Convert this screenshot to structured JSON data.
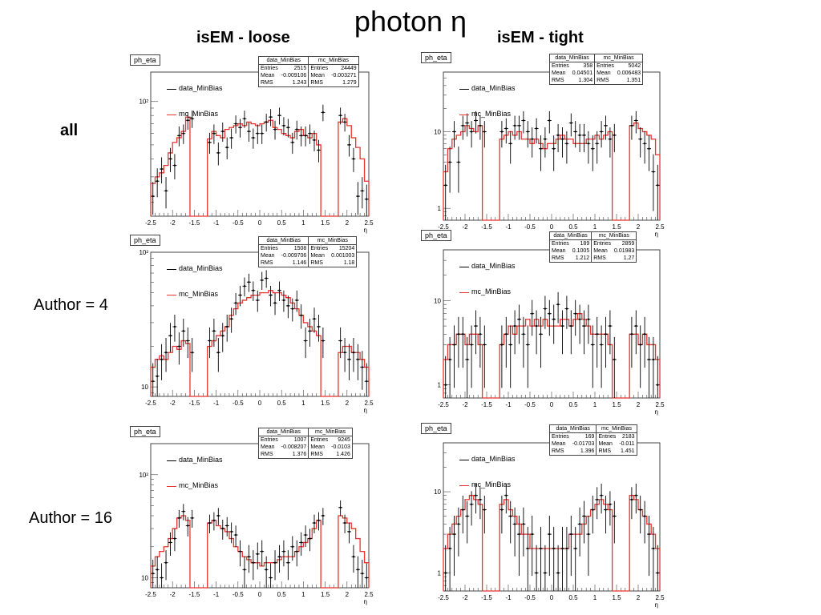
{
  "slide": {
    "title": "photon η",
    "col_loose": "isEM - loose",
    "col_tight": "isEM - tight",
    "row_all": "all",
    "row_a4": "Author = 4",
    "row_a16": "Author = 16"
  },
  "colors": {
    "data": "#000000",
    "mc": "#e8332f",
    "frame": "#444444"
  },
  "chart_data": [
    {
      "id": "loose-all",
      "type": "histogram",
      "hist_name": "ph_eta",
      "xlabel": "η",
      "xticks": [
        "-2.5",
        "-2",
        "-1.5",
        "-1",
        "-0.5",
        "0",
        "0.5",
        "1",
        "1.5",
        "2",
        "2.5"
      ],
      "xlim": [
        -2.5,
        2.5
      ],
      "ylog": true,
      "ylim": [
        16,
        160
      ],
      "yticks": [
        {
          "v": 100,
          "t": "10²"
        }
      ],
      "legend": {
        "data": "data_MinBias",
        "mc": "mc_MinBias"
      },
      "stats": {
        "data": {
          "name": "data_MinBias",
          "entries": "2515",
          "mean": "-0.009106",
          "rms": "1.243"
        },
        "mc": {
          "name": "mc_MinBias",
          "entries": "24449",
          "mean": "-0.003271",
          "rms": "1.279"
        }
      },
      "mc": [
        27,
        30,
        32,
        36,
        44,
        52,
        56,
        62,
        78,
        0,
        0,
        0,
        0,
        55,
        62,
        58,
        56,
        64,
        66,
        68,
        70,
        68,
        72,
        70,
        68,
        70,
        72,
        74,
        66,
        64,
        60,
        58,
        56,
        62,
        64,
        58,
        56,
        60,
        50,
        0,
        0,
        0,
        0,
        72,
        76,
        68,
        56,
        48,
        40,
        28
      ],
      "data": [
        22,
        28,
        34,
        24,
        40,
        36,
        58,
        60,
        74,
        76,
        0,
        0,
        0,
        52,
        60,
        44,
        62,
        48,
        56,
        70,
        66,
        76,
        62,
        56,
        60,
        60,
        72,
        78,
        64,
        80,
        68,
        66,
        52,
        64,
        58,
        58,
        60,
        54,
        46,
        84,
        0,
        0,
        0,
        80,
        72,
        50,
        40,
        22,
        24,
        21
      ]
    },
    {
      "id": "tight-all",
      "type": "histogram",
      "hist_name": "ph_eta",
      "xlabel": "η",
      "xticks": [
        "-2.5",
        "-2",
        "-1.5",
        "-1",
        "-0.5",
        "0",
        "0.5",
        "1",
        "1.5",
        "2",
        "2.5"
      ],
      "xlim": [
        -2.5,
        2.5
      ],
      "ylog": true,
      "ylim": [
        0.7,
        60
      ],
      "yticks": [
        {
          "v": 1,
          "t": "1"
        },
        {
          "v": 10,
          "t": "10"
        }
      ],
      "legend": {
        "data": "data_MinBias",
        "mc": "mc_MinBias"
      },
      "stats": {
        "data": {
          "name": "data_MinBias",
          "entries": "358",
          "mean": "0.04501",
          "rms": "1.304"
        },
        "mc": {
          "name": "mc_MinBias",
          "entries": "5042",
          "mean": "0.006483",
          "rms": "1.351"
        }
      },
      "mc": [
        3,
        6,
        8,
        9,
        10,
        12,
        11,
        10,
        12,
        0,
        0,
        0,
        0,
        8,
        9,
        10,
        9,
        10,
        8,
        8,
        7,
        8,
        7,
        6,
        7,
        7,
        8,
        9,
        8,
        8,
        7,
        7,
        7,
        8,
        8,
        9,
        8,
        9,
        10,
        0,
        0,
        0,
        0,
        12,
        13,
        11,
        10,
        9,
        8,
        5
      ],
      "data": [
        2,
        4,
        10,
        4,
        12,
        13,
        10,
        14,
        12,
        10,
        0,
        0,
        0,
        10,
        11,
        7,
        12,
        12,
        14,
        10,
        8,
        11,
        6,
        8,
        14,
        6,
        9,
        8,
        7,
        13,
        10,
        9,
        9,
        7,
        6,
        7,
        10,
        12,
        8,
        9,
        0,
        0,
        0,
        12,
        14,
        8,
        7,
        6,
        3,
        2
      ]
    },
    {
      "id": "loose-a4",
      "type": "histogram",
      "hist_name": "ph_eta",
      "xlabel": "η",
      "xticks": [
        "-2.5",
        "-2",
        "-1.5",
        "-1",
        "-0.5",
        "0",
        "0.5",
        "1",
        "1.5",
        "2",
        "2.5"
      ],
      "xlim": [
        -2.5,
        2.5
      ],
      "ylog": true,
      "ylim": [
        8.5,
        100
      ],
      "yticks": [
        {
          "v": 10,
          "t": "10"
        },
        {
          "v": 100,
          "t": "10²"
        }
      ],
      "legend": {
        "data": "data_MinBias",
        "mc": "mc_MinBias"
      },
      "stats": {
        "data": {
          "name": "data_MinBias",
          "entries": "1508",
          "mean": "-0.009706",
          "rms": "1.146"
        },
        "mc": {
          "name": "mc_MinBias",
          "entries": "15204",
          "mean": "0.001003",
          "rms": "1.18"
        }
      },
      "mc": [
        14,
        16,
        17,
        16,
        18,
        20,
        19,
        22,
        21,
        0,
        0,
        0,
        0,
        20,
        22,
        24,
        26,
        28,
        34,
        38,
        42,
        44,
        46,
        48,
        48,
        50,
        50,
        52,
        50,
        50,
        48,
        46,
        42,
        38,
        34,
        30,
        28,
        26,
        24,
        0,
        0,
        0,
        0,
        18,
        20,
        20,
        18,
        18,
        16,
        14
      ],
      "data": [
        11,
        12,
        16,
        18,
        24,
        28,
        20,
        26,
        22,
        18,
        0,
        0,
        0,
        22,
        26,
        18,
        24,
        28,
        32,
        42,
        48,
        56,
        60,
        52,
        44,
        62,
        64,
        48,
        42,
        52,
        44,
        40,
        38,
        44,
        34,
        22,
        26,
        32,
        28,
        22,
        0,
        0,
        0,
        22,
        18,
        16,
        18,
        16,
        14,
        11
      ]
    },
    {
      "id": "tight-a4",
      "type": "histogram",
      "hist_name": "ph_eta",
      "xlabel": "η",
      "xticks": [
        "-2.5",
        "-2",
        "-1.5",
        "-1",
        "-0.5",
        "0",
        "0.5",
        "1",
        "1.5",
        "2",
        "2.5"
      ],
      "xlim": [
        -2.5,
        2.5
      ],
      "ylog": true,
      "ylim": [
        0.7,
        40
      ],
      "yticks": [
        {
          "v": 1,
          "t": "1"
        },
        {
          "v": 10,
          "t": "10"
        }
      ],
      "legend": {
        "data": "data_MinBias",
        "mc": "mc_MinBias"
      },
      "stats": {
        "data": {
          "name": "data_MinBias",
          "entries": "189",
          "mean": "0.1005",
          "rms": "1.212"
        },
        "mc": {
          "name": "mc_MinBias",
          "entries": "2859",
          "mean": "0.01983",
          "rms": "1.27"
        }
      },
      "mc": [
        2,
        3,
        3,
        4,
        4,
        3,
        4,
        4,
        3,
        0,
        0,
        0,
        0,
        3,
        4,
        5,
        4,
        5,
        5,
        6,
        5,
        6,
        5,
        6,
        5,
        5,
        5,
        6,
        6,
        5,
        6,
        7,
        6,
        5,
        4,
        4,
        4,
        4,
        3,
        0,
        0,
        0,
        0,
        4,
        4,
        3,
        4,
        3,
        3,
        2
      ],
      "data": [
        1,
        2,
        3,
        4,
        4,
        2,
        3,
        5,
        4,
        3,
        0,
        0,
        0,
        3,
        4,
        3,
        5,
        6,
        4,
        3,
        7,
        5,
        4,
        8,
        7,
        6,
        9,
        5,
        8,
        5,
        7,
        6,
        5,
        6,
        3,
        4,
        3,
        4,
        5,
        2,
        0,
        0,
        0,
        4,
        5,
        3,
        4,
        2,
        2,
        1
      ]
    },
    {
      "id": "loose-a16",
      "type": "histogram",
      "hist_name": "ph_eta",
      "xlabel": "η",
      "xticks": [
        "-2.5",
        "-2",
        "-1.5",
        "-1",
        "-0.5",
        "0",
        "0.5",
        "1",
        "1.5",
        "2",
        "2.5"
      ],
      "xlim": [
        -2.5,
        2.5
      ],
      "ylog": true,
      "ylim": [
        8,
        200
      ],
      "yticks": [
        {
          "v": 10,
          "t": "10"
        },
        {
          "v": 100,
          "t": "10²"
        }
      ],
      "legend": {
        "data": "data_MinBias",
        "mc": "mc_MinBias"
      },
      "stats": {
        "data": {
          "name": "data_MinBias",
          "entries": "1007",
          "mean": "-0.008207",
          "rms": "1.376"
        },
        "mc": {
          "name": "mc_MinBias",
          "entries": "9245",
          "mean": "-0.0103",
          "rms": "1.426"
        }
      },
      "mc": [
        13,
        16,
        18,
        20,
        24,
        30,
        38,
        40,
        36,
        0,
        0,
        0,
        0,
        34,
        36,
        32,
        30,
        28,
        24,
        20,
        18,
        16,
        15,
        14,
        14,
        13,
        14,
        14,
        14,
        15,
        16,
        16,
        16,
        18,
        20,
        22,
        24,
        30,
        36,
        0,
        0,
        0,
        0,
        40,
        38,
        34,
        30,
        24,
        18,
        14
      ],
      "data": [
        11,
        12,
        10,
        14,
        22,
        24,
        38,
        44,
        32,
        38,
        0,
        0,
        0,
        34,
        36,
        40,
        30,
        32,
        28,
        26,
        18,
        12,
        16,
        14,
        17,
        18,
        12,
        10,
        14,
        16,
        18,
        14,
        20,
        18,
        22,
        26,
        24,
        34,
        36,
        40,
        0,
        0,
        0,
        48,
        34,
        28,
        16,
        12,
        11,
        10
      ]
    },
    {
      "id": "tight-a16",
      "type": "histogram",
      "hist_name": "ph_eta",
      "xlabel": "η",
      "xticks": [
        "-2.5",
        "-2",
        "-1.5",
        "-1",
        "-0.5",
        "0",
        "0.5",
        "1",
        "1.5",
        "2",
        "2.5"
      ],
      "xlim": [
        -2.5,
        2.5
      ],
      "ylog": true,
      "ylim": [
        0.6,
        40
      ],
      "yticks": [
        {
          "v": 1,
          "t": "1"
        },
        {
          "v": 10,
          "t": "10"
        }
      ],
      "legend": {
        "data": "data_MinBias",
        "mc": "mc_MinBias"
      },
      "stats": {
        "data": {
          "name": "data_MinBias",
          "entries": "169",
          "mean": "-0.01703",
          "rms": "1.396"
        },
        "mc": {
          "name": "mc_MinBias",
          "entries": "2183",
          "mean": "-0.011",
          "rms": "1.451"
        }
      },
      "mc": [
        2,
        3,
        4,
        5,
        6,
        8,
        9,
        8,
        7,
        0,
        0,
        0,
        0,
        7,
        8,
        6,
        5,
        4,
        3,
        3,
        2,
        2,
        2,
        2,
        2,
        2,
        2,
        2,
        2,
        3,
        3,
        3,
        4,
        5,
        6,
        7,
        8,
        7,
        6,
        0,
        0,
        0,
        0,
        9,
        8,
        6,
        5,
        4,
        3,
        2
      ],
      "data": [
        1,
        2,
        3,
        4,
        6,
        5,
        7,
        9,
        8,
        6,
        0,
        0,
        0,
        6,
        9,
        5,
        4,
        3,
        4,
        2,
        3,
        1,
        2,
        1,
        3,
        2,
        1,
        2,
        2,
        3,
        2,
        4,
        5,
        3,
        6,
        8,
        9,
        6,
        7,
        5,
        0,
        0,
        0,
        8,
        9,
        6,
        5,
        3,
        2,
        1
      ]
    }
  ]
}
